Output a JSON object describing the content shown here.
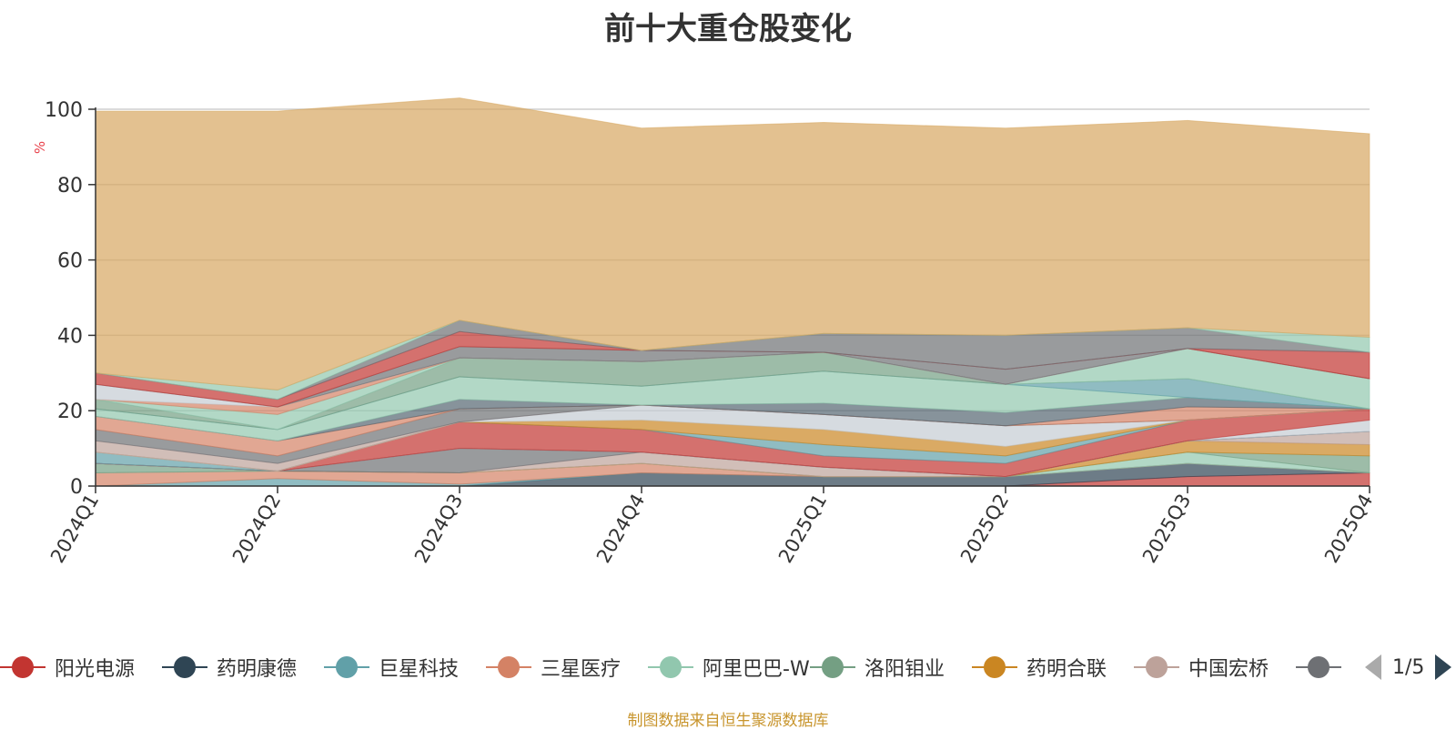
{
  "chart_data": {
    "type": "area",
    "stacked": true,
    "title": "前十大重仓股变化",
    "ylabel": "%",
    "xlabel": "",
    "ylim": [
      0,
      100
    ],
    "yticks": [
      0,
      20,
      40,
      60,
      80,
      100
    ],
    "categories": [
      "2024Q1",
      "2024Q2",
      "2024Q3",
      "2024Q4",
      "2025Q1",
      "2025Q2",
      "2025Q3",
      "2025Q4"
    ],
    "grid": true,
    "series": [
      {
        "name": "阳光电源",
        "color": "#c23531",
        "values": [
          0,
          0,
          0,
          0,
          0,
          0,
          2.5,
          3.5
        ]
      },
      {
        "name": "药明康德",
        "color": "#2f4554",
        "values": [
          0,
          0,
          0,
          3.5,
          2.5,
          2.5,
          3.5,
          0
        ]
      },
      {
        "name": "巨星科技",
        "color": "#61a0a8",
        "values": [
          0,
          2,
          0.5,
          0,
          0,
          0,
          0,
          0
        ]
      },
      {
        "name": "三星医疗",
        "color": "#d48265",
        "values": [
          3.5,
          2,
          3,
          2.5,
          0,
          0,
          0,
          0
        ]
      },
      {
        "name": "阿里巴巴-W",
        "color": "#91c7ae",
        "values": [
          0,
          0,
          0,
          0,
          0,
          0,
          3,
          0
        ]
      },
      {
        "name": "洛阳钼业",
        "color": "#749f83",
        "values": [
          2.5,
          0,
          0,
          0,
          0,
          0,
          0,
          4.5
        ]
      },
      {
        "name": "药明合联",
        "color": "#ca8622",
        "values": [
          0,
          0,
          0,
          0,
          0,
          0,
          3,
          3
        ]
      },
      {
        "name": "中国宏桥",
        "color": "#bda29a",
        "values": [
          0,
          0,
          0,
          3,
          2.5,
          0,
          0,
          3.5
        ]
      },
      {
        "name": "",
        "color": "#6e7074",
        "values": [
          0,
          0,
          6.5,
          0,
          0,
          0,
          0,
          0
        ]
      },
      {
        "name": "",
        "color": "#546570",
        "values": [
          0,
          0,
          0,
          0,
          0,
          0,
          0,
          0
        ]
      },
      {
        "name": "",
        "color": "#c4ccd3",
        "values": [
          0,
          0,
          0,
          0,
          0,
          0,
          0,
          3
        ]
      },
      {
        "name": "",
        "color": "#c23531",
        "values": [
          0,
          0,
          7,
          6,
          3,
          3.5,
          5.5,
          3
        ]
      },
      {
        "name": "",
        "color": "#61a0a8",
        "values": [
          3,
          0,
          0,
          0,
          3,
          2,
          0,
          0
        ]
      },
      {
        "name": "",
        "color": "#ca8622",
        "values": [
          0,
          0,
          0,
          2.5,
          4,
          2.5,
          0,
          0
        ]
      },
      {
        "name": "",
        "color": "#c4ccd3",
        "values": [
          0,
          0,
          0,
          4,
          4,
          5.5,
          0,
          0
        ]
      },
      {
        "name": "",
        "color": "#bda29a",
        "values": [
          3,
          2,
          0,
          0,
          0,
          0,
          0,
          0
        ]
      },
      {
        "name": "",
        "color": "#6e7074",
        "values": [
          3,
          2,
          3.5,
          0,
          0,
          0,
          0,
          0
        ]
      },
      {
        "name": "",
        "color": "#d48265",
        "values": [
          3.5,
          4,
          0,
          0,
          0,
          0,
          3.5,
          0
        ]
      },
      {
        "name": "",
        "color": "#546570",
        "values": [
          0,
          0,
          2.5,
          0,
          3,
          3.5,
          2.5,
          0
        ]
      },
      {
        "name": "",
        "color": "#91c7ae",
        "values": [
          2,
          3,
          6,
          5,
          8.5,
          7.5,
          0,
          0
        ]
      },
      {
        "name": "",
        "color": "#61a0a8",
        "values": [
          0,
          0,
          0,
          0,
          0,
          0,
          5,
          0
        ]
      },
      {
        "name": "",
        "color": "#749f83",
        "values": [
          2.5,
          0,
          5,
          6.5,
          5,
          0,
          0,
          0
        ]
      },
      {
        "name": "",
        "color": "#91c7ae",
        "values": [
          0,
          4,
          0,
          0,
          0,
          0,
          8,
          8
        ]
      },
      {
        "name": "",
        "color": "#d48265",
        "values": [
          0,
          2,
          0,
          0,
          0,
          0,
          0,
          0
        ]
      },
      {
        "name": "",
        "color": "#c4ccd3",
        "values": [
          4,
          0,
          0,
          0,
          0,
          0,
          0,
          0
        ]
      },
      {
        "name": "",
        "color": "#6e7074",
        "values": [
          0,
          0,
          3,
          3,
          0,
          4,
          0,
          0
        ]
      },
      {
        "name": "",
        "color": "#c23531",
        "values": [
          3,
          2,
          4,
          0,
          0,
          0,
          0,
          7
        ]
      },
      {
        "name": "",
        "color": "#6e7074",
        "values": [
          0,
          0,
          3,
          0,
          5,
          9,
          5.5,
          0
        ]
      },
      {
        "name": "",
        "color": "#91c7ae",
        "values": [
          0,
          2.5,
          0,
          0,
          0,
          0,
          0,
          4
        ]
      },
      {
        "name": "",
        "color": "#d7a761",
        "values": [
          69.5,
          74,
          59,
          59,
          56,
          55,
          55,
          54
        ]
      }
    ]
  },
  "legend": {
    "pager_text": "1/5"
  },
  "footer_note": "制图数据来自恒生聚源数据库"
}
